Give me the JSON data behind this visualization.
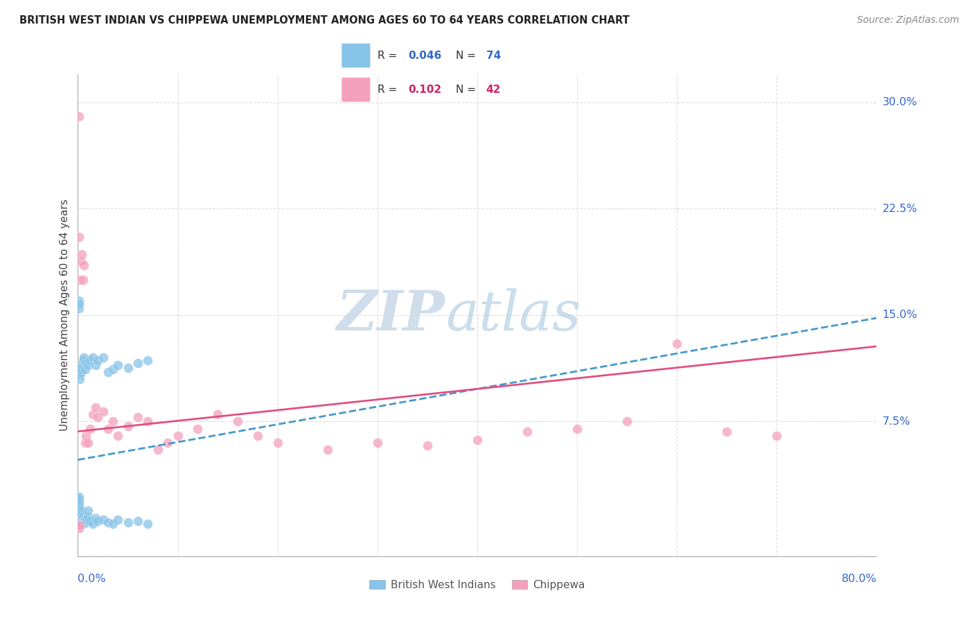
{
  "title": "BRITISH WEST INDIAN VS CHIPPEWA UNEMPLOYMENT AMONG AGES 60 TO 64 YEARS CORRELATION CHART",
  "source": "Source: ZipAtlas.com",
  "ylabel": "Unemployment Among Ages 60 to 64 years",
  "ytick_values": [
    0.075,
    0.15,
    0.225,
    0.3
  ],
  "ytick_labels": [
    "7.5%",
    "15.0%",
    "22.5%",
    "30.0%"
  ],
  "xmin": 0.0,
  "xmax": 0.8,
  "ymin": -0.02,
  "ymax": 0.32,
  "color_blue": "#88c4e8",
  "color_pink": "#f4a0bc",
  "color_blue_line": "#4499cc",
  "color_pink_line": "#e05080",
  "color_blue_text": "#3366cc",
  "color_pink_text": "#cc2266",
  "color_grid": "#dddddd",
  "watermark_color": "#d8e8f0",
  "blue_line_x0": 0.0,
  "blue_line_y0": 0.048,
  "blue_line_x1": 0.8,
  "blue_line_y1": 0.148,
  "pink_line_x0": 0.0,
  "pink_line_y0": 0.068,
  "pink_line_x1": 0.8,
  "pink_line_y1": 0.128,
  "blue_pts_x": [
    0.001,
    0.001,
    0.001,
    0.001,
    0.001,
    0.001,
    0.001,
    0.001,
    0.001,
    0.001,
    0.001,
    0.001,
    0.001,
    0.001,
    0.001,
    0.001,
    0.001,
    0.001,
    0.001,
    0.001,
    0.002,
    0.002,
    0.002,
    0.002,
    0.002,
    0.002,
    0.003,
    0.003,
    0.003,
    0.004,
    0.004,
    0.005,
    0.005,
    0.006,
    0.007,
    0.008,
    0.009,
    0.01,
    0.01,
    0.012,
    0.015,
    0.018,
    0.02,
    0.025,
    0.03,
    0.035,
    0.04,
    0.05,
    0.06,
    0.07,
    0.001,
    0.001,
    0.001,
    0.002,
    0.002,
    0.003,
    0.003,
    0.004,
    0.005,
    0.006,
    0.007,
    0.008,
    0.01,
    0.012,
    0.015,
    0.018,
    0.02,
    0.025,
    0.03,
    0.035,
    0.04,
    0.05,
    0.06,
    0.07
  ],
  "blue_pts_y": [
    0.0,
    0.0,
    0.0,
    0.001,
    0.002,
    0.003,
    0.004,
    0.005,
    0.006,
    0.007,
    0.008,
    0.009,
    0.01,
    0.012,
    0.013,
    0.015,
    0.016,
    0.018,
    0.02,
    0.022,
    0.0,
    0.001,
    0.003,
    0.005,
    0.007,
    0.01,
    0.002,
    0.006,
    0.012,
    0.004,
    0.009,
    0.003,
    0.008,
    0.005,
    0.007,
    0.004,
    0.006,
    0.008,
    0.012,
    0.005,
    0.003,
    0.007,
    0.005,
    0.006,
    0.004,
    0.003,
    0.006,
    0.004,
    0.005,
    0.003,
    0.16,
    0.155,
    0.158,
    0.105,
    0.108,
    0.11,
    0.112,
    0.115,
    0.118,
    0.12,
    0.112,
    0.116,
    0.115,
    0.118,
    0.12,
    0.115,
    0.118,
    0.12,
    0.11,
    0.112,
    0.115,
    0.113,
    0.116,
    0.118
  ],
  "pink_pts_x": [
    0.001,
    0.001,
    0.002,
    0.003,
    0.004,
    0.005,
    0.006,
    0.007,
    0.008,
    0.01,
    0.012,
    0.015,
    0.018,
    0.02,
    0.025,
    0.03,
    0.035,
    0.04,
    0.05,
    0.06,
    0.07,
    0.08,
    0.09,
    0.1,
    0.12,
    0.14,
    0.16,
    0.18,
    0.2,
    0.25,
    0.3,
    0.35,
    0.4,
    0.45,
    0.5,
    0.55,
    0.6,
    0.65,
    0.7,
    0.001,
    0.001,
    0.002
  ],
  "pink_pts_y": [
    0.29,
    0.205,
    0.175,
    0.188,
    0.193,
    0.175,
    0.185,
    0.06,
    0.065,
    0.06,
    0.07,
    0.08,
    0.085,
    0.078,
    0.082,
    0.07,
    0.075,
    0.065,
    0.072,
    0.078,
    0.075,
    0.055,
    0.06,
    0.065,
    0.07,
    0.08,
    0.075,
    0.065,
    0.06,
    0.055,
    0.06,
    0.058,
    0.062,
    0.068,
    0.07,
    0.075,
    0.13,
    0.068,
    0.065,
    0.0,
    0.001,
    0.002
  ]
}
